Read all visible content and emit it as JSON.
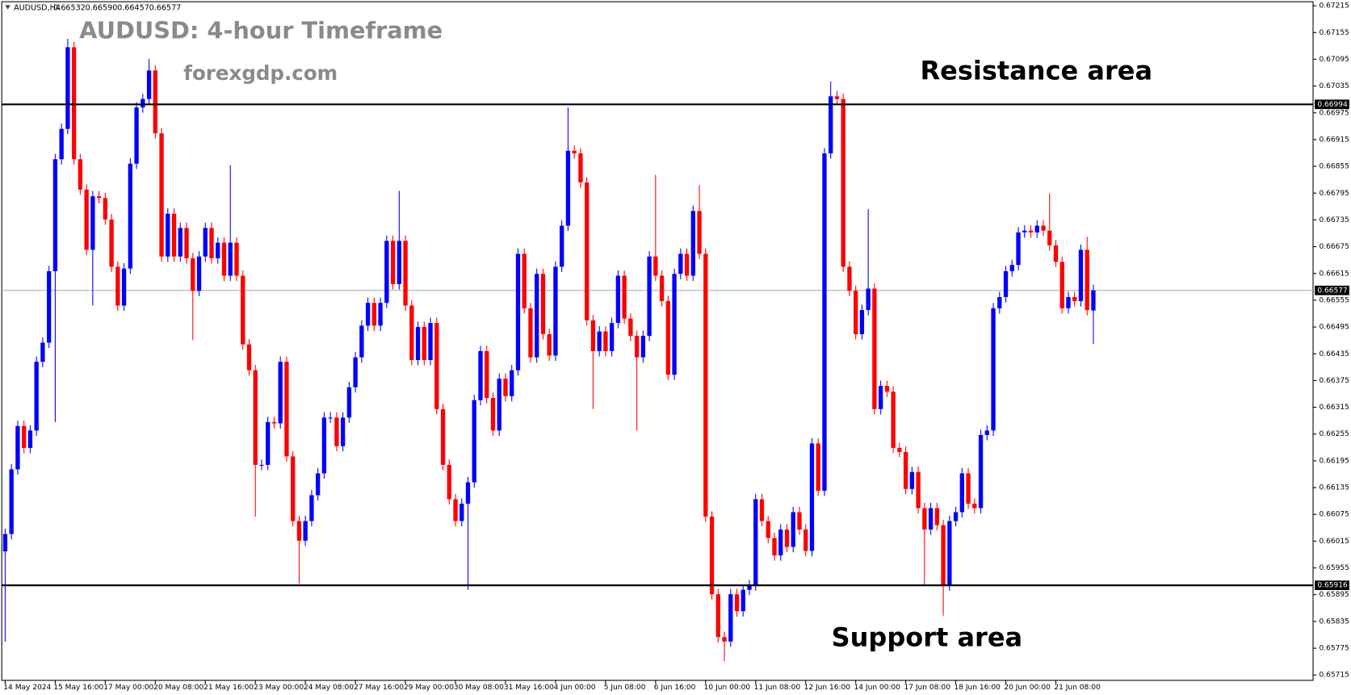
{
  "chart_data": {
    "type": "candlestick",
    "symbol": "AUDUSD,H4",
    "header_labels": [
      "0.66532",
      "0.66590",
      "0.66457",
      "0.66577"
    ],
    "title": "AUDUSD: 4-hour Timeframe",
    "subtitle": "forexgdp.com",
    "annotations": [
      "Resistance area",
      "Support area"
    ],
    "up_color": "#0000ff",
    "down_color": "#ff0000",
    "levels": [
      0.66994,
      0.65916
    ],
    "last_price": 0.66577,
    "ylim": [
      0.65703,
      0.67224
    ],
    "yticks": [
      0.67215,
      0.67155,
      0.67095,
      0.67035,
      0.66975,
      0.66915,
      0.66855,
      0.66795,
      0.66735,
      0.66675,
      0.66615,
      0.66555,
      0.66495,
      0.66435,
      0.66375,
      0.66315,
      0.66255,
      0.66195,
      0.66135,
      0.66075,
      0.66015,
      0.65955,
      0.65895,
      0.65835,
      0.65775,
      0.65715
    ],
    "categories": [
      "14 May 2024",
      null,
      null,
      null,
      null,
      null,
      null,
      null,
      "15 May 16:00",
      null,
      null,
      null,
      null,
      null,
      null,
      null,
      "17 May 00:00",
      null,
      null,
      null,
      null,
      null,
      null,
      null,
      "20 May 08:00",
      null,
      null,
      null,
      null,
      null,
      null,
      null,
      "21 May 16:00",
      null,
      null,
      null,
      null,
      null,
      null,
      null,
      "23 May 00:00",
      null,
      null,
      null,
      null,
      null,
      null,
      null,
      "24 May 08:00",
      null,
      null,
      null,
      null,
      null,
      null,
      null,
      "27 May 16:00",
      null,
      null,
      null,
      null,
      null,
      null,
      null,
      "29 May 00:00",
      null,
      null,
      null,
      null,
      null,
      null,
      null,
      "30 May 08:00",
      null,
      null,
      null,
      null,
      null,
      null,
      null,
      "31 May 16:00",
      null,
      null,
      null,
      null,
      null,
      null,
      null,
      "4 Jun 00:00",
      null,
      null,
      null,
      null,
      null,
      null,
      null,
      "5 Jun 08:00",
      null,
      null,
      null,
      null,
      null,
      null,
      null,
      "6 Jun 16:00",
      null,
      null,
      null,
      null,
      null,
      null,
      null,
      "10 Jun 00:00",
      null,
      null,
      null,
      null,
      null,
      null,
      null,
      "11 Jun 08:00",
      null,
      null,
      null,
      null,
      null,
      null,
      null,
      "12 Jun 16:00",
      null,
      null,
      null,
      null,
      null,
      null,
      null,
      "14 Jun 00:00",
      null,
      null,
      null,
      null,
      null,
      null,
      null,
      "17 Jun 08:00",
      null,
      null,
      null,
      null,
      null,
      null,
      null,
      "18 Jun 16:00",
      null,
      null,
      null,
      null,
      null,
      null,
      null,
      "20 Jun 00:00",
      null,
      null,
      null,
      null,
      null,
      null,
      null,
      "21 Jun 08:00",
      null,
      null,
      null,
      null,
      null,
      null
    ],
    "open": [
      0.65992,
      0.66031,
      0.66176,
      0.66273,
      0.66224,
      0.66263,
      0.66417,
      0.6646,
      0.6662,
      0.66871,
      0.66939,
      0.67122,
      0.66871,
      0.66803,
      0.66668,
      0.66788,
      0.66784,
      0.66736,
      0.6663,
      0.66543,
      0.66626,
      0.66861,
      0.66987,
      0.67006,
      0.6707,
      0.66929,
      0.66653,
      0.66749,
      0.66653,
      0.66717,
      0.66649,
      0.66576,
      0.66653,
      0.66717,
      0.66649,
      0.66684,
      0.6661,
      0.66684,
      0.6661,
      0.66456,
      0.66398,
      0.66186,
      0.66186,
      0.66282,
      0.66279,
      0.66417,
      0.66205,
      0.6606,
      0.66016,
      0.6606,
      0.66118,
      0.66167,
      0.66292,
      0.66292,
      0.66228,
      0.66292,
      0.6636,
      0.66427,
      0.66498,
      0.66549,
      0.66498,
      0.66549,
      0.66688,
      0.66591,
      0.66688,
      0.66543,
      0.66421,
      0.66495,
      0.66421,
      0.66504,
      0.66311,
      0.66186,
      0.66109,
      0.6606,
      0.66099,
      0.66147,
      0.66331,
      0.66441,
      0.66336,
      0.66263,
      0.66379,
      0.6634,
      0.66398,
      0.66659,
      0.66537,
      0.66427,
      0.66614,
      0.66479,
      0.66431,
      0.6663,
      0.66722,
      0.6689,
      0.66884,
      0.66819,
      0.6651,
      0.66441,
      0.66485,
      0.66441,
      0.66504,
      0.6661,
      0.66514,
      0.66475,
      0.66427,
      0.66475,
      0.66653,
      0.6661,
      0.66553,
      0.66388,
      0.66614,
      0.66659,
      0.6661,
      0.66755,
      0.66659,
      0.6607,
      0.65896,
      0.658,
      0.6579,
      0.65896,
      0.65858,
      0.65906,
      0.65916,
      0.66109,
      0.6606,
      0.66022,
      0.65983,
      0.66041,
      0.66002,
      0.6608,
      0.66041,
      0.65993,
      0.66234,
      0.66128,
      0.66884,
      0.67012,
      0.67006,
      0.6663,
      0.66576,
      0.66479,
      0.66533,
      0.66581,
      0.66311,
      0.66363,
      0.6635,
      0.66224,
      0.66215,
      0.66132,
      0.6617,
      0.66089,
      0.66041,
      0.66089,
      0.66051,
      0.65916,
      0.6606,
      0.6608,
      0.66167,
      0.66099,
      0.66089,
      0.66253,
      0.66263,
      0.66537,
      0.66562,
      0.6662,
      0.66634,
      0.66707,
      0.66711,
      0.66707,
      0.66722,
      0.66711,
      0.66678,
      0.66641,
      0.66537,
      0.66562,
      0.66553,
      0.66668,
      0.66532
    ],
    "high": [
      0.66043,
      0.66188,
      0.66285,
      0.66285,
      0.66275,
      0.66429,
      0.66472,
      0.66632,
      0.66883,
      0.66951,
      0.67141,
      0.67134,
      0.66883,
      0.66815,
      0.668,
      0.668,
      0.66796,
      0.66748,
      0.66642,
      0.66638,
      0.66873,
      0.66999,
      0.67018,
      0.67096,
      0.67082,
      0.66941,
      0.66761,
      0.66761,
      0.66729,
      0.66729,
      0.66661,
      0.66665,
      0.66729,
      0.66729,
      0.66696,
      0.66696,
      0.66858,
      0.66696,
      0.66622,
      0.66468,
      0.6641,
      0.66198,
      0.66294,
      0.66294,
      0.66429,
      0.66429,
      0.66217,
      0.66072,
      0.66072,
      0.6613,
      0.66179,
      0.66304,
      0.66304,
      0.66304,
      0.66304,
      0.66372,
      0.66439,
      0.6651,
      0.66561,
      0.66561,
      0.66561,
      0.667,
      0.667,
      0.668,
      0.667,
      0.66555,
      0.66507,
      0.66507,
      0.66516,
      0.66516,
      0.66323,
      0.66198,
      0.66121,
      0.66111,
      0.66159,
      0.66343,
      0.66453,
      0.66453,
      0.66348,
      0.66391,
      0.66391,
      0.6641,
      0.66671,
      0.66671,
      0.66549,
      0.66626,
      0.66626,
      0.66491,
      0.66642,
      0.66734,
      0.66987,
      0.66902,
      0.66896,
      0.66831,
      0.66522,
      0.66497,
      0.66497,
      0.66516,
      0.66622,
      0.66622,
      0.66526,
      0.66487,
      0.66487,
      0.66665,
      0.66836,
      0.66622,
      0.66565,
      0.66626,
      0.66671,
      0.66671,
      0.66767,
      0.66813,
      0.66671,
      0.66082,
      0.65908,
      0.65812,
      0.65908,
      0.65908,
      0.65918,
      0.65928,
      0.66121,
      0.66121,
      0.66072,
      0.66034,
      0.66053,
      0.66053,
      0.66092,
      0.66092,
      0.66053,
      0.66246,
      0.66246,
      0.66896,
      0.67045,
      0.67024,
      0.67018,
      0.66642,
      0.66588,
      0.66545,
      0.66759,
      0.66593,
      0.66375,
      0.66375,
      0.66362,
      0.66236,
      0.66227,
      0.66182,
      0.66182,
      0.66101,
      0.66101,
      0.66101,
      0.66063,
      0.66072,
      0.66092,
      0.66179,
      0.66179,
      0.66111,
      0.66265,
      0.66275,
      0.66549,
      0.66574,
      0.66632,
      0.66646,
      0.66719,
      0.66723,
      0.66723,
      0.66734,
      0.66734,
      0.66794,
      0.6669,
      0.66653,
      0.66574,
      0.66574,
      0.6668,
      0.66697,
      0.6659
    ],
    "low": [
      0.6579,
      0.66019,
      0.66164,
      0.66212,
      0.66212,
      0.66251,
      0.66405,
      0.66448,
      0.66282,
      0.66859,
      0.66927,
      0.66859,
      0.66791,
      0.66656,
      0.66543,
      0.66772,
      0.66724,
      0.66618,
      0.66531,
      0.66531,
      0.66614,
      0.66849,
      0.66975,
      0.66994,
      0.66917,
      0.66641,
      0.66641,
      0.66641,
      0.66641,
      0.66637,
      0.66466,
      0.66564,
      0.66641,
      0.66637,
      0.66637,
      0.66598,
      0.66598,
      0.66598,
      0.66444,
      0.66386,
      0.6607,
      0.66174,
      0.66174,
      0.66267,
      0.66267,
      0.66193,
      0.66048,
      0.6592,
      0.66004,
      0.66048,
      0.66106,
      0.66155,
      0.6628,
      0.66216,
      0.66216,
      0.6628,
      0.66348,
      0.66415,
      0.66486,
      0.66486,
      0.66486,
      0.66537,
      0.66579,
      0.66579,
      0.66531,
      0.66409,
      0.66409,
      0.66409,
      0.66409,
      0.66299,
      0.66174,
      0.66097,
      0.66048,
      0.66048,
      0.65906,
      0.66135,
      0.66319,
      0.66324,
      0.66251,
      0.66251,
      0.66328,
      0.66328,
      0.66386,
      0.66525,
      0.66415,
      0.66415,
      0.66467,
      0.66419,
      0.66419,
      0.66618,
      0.6671,
      0.66872,
      0.66807,
      0.66498,
      0.66311,
      0.66429,
      0.66429,
      0.66429,
      0.66492,
      0.66502,
      0.66463,
      0.66263,
      0.66415,
      0.66463,
      0.66598,
      0.66541,
      0.66376,
      0.66376,
      0.66602,
      0.66598,
      0.66598,
      0.66647,
      0.66058,
      0.65884,
      0.65788,
      0.65746,
      0.65778,
      0.65846,
      0.65846,
      0.65894,
      0.65904,
      0.66048,
      0.6601,
      0.65971,
      0.65971,
      0.6599,
      0.6599,
      0.66029,
      0.65981,
      0.65981,
      0.66116,
      0.66116,
      0.66872,
      0.66994,
      0.66618,
      0.66564,
      0.66467,
      0.66467,
      0.66521,
      0.66299,
      0.66299,
      0.66338,
      0.66212,
      0.66203,
      0.6612,
      0.6612,
      0.66077,
      0.65916,
      0.66029,
      0.66039,
      0.65848,
      0.65904,
      0.66048,
      0.66068,
      0.66087,
      0.66077,
      0.66077,
      0.66241,
      0.66251,
      0.66525,
      0.6655,
      0.66608,
      0.66622,
      0.66695,
      0.66695,
      0.66695,
      0.66699,
      0.66666,
      0.66629,
      0.66525,
      0.66525,
      0.66541,
      0.66541,
      0.66521,
      0.66457
    ],
    "close": [
      0.66031,
      0.66176,
      0.66273,
      0.66224,
      0.66263,
      0.66417,
      0.6646,
      0.6662,
      0.66871,
      0.66939,
      0.67122,
      0.66871,
      0.66803,
      0.66668,
      0.66788,
      0.66784,
      0.66736,
      0.6663,
      0.66543,
      0.66626,
      0.66861,
      0.66987,
      0.67006,
      0.6707,
      0.66929,
      0.66653,
      0.66749,
      0.66653,
      0.66717,
      0.66649,
      0.66576,
      0.66653,
      0.66717,
      0.66649,
      0.66684,
      0.6661,
      0.66684,
      0.6661,
      0.66456,
      0.66398,
      0.66186,
      0.66186,
      0.66282,
      0.66279,
      0.66417,
      0.66205,
      0.6606,
      0.66016,
      0.6606,
      0.66118,
      0.66167,
      0.66292,
      0.66292,
      0.66228,
      0.66292,
      0.6636,
      0.66427,
      0.66498,
      0.66549,
      0.66498,
      0.66549,
      0.66688,
      0.66591,
      0.66688,
      0.66543,
      0.66421,
      0.66495,
      0.66421,
      0.66504,
      0.66311,
      0.66186,
      0.66109,
      0.6606,
      0.66099,
      0.66147,
      0.66331,
      0.66441,
      0.66336,
      0.66263,
      0.66379,
      0.6634,
      0.66398,
      0.66659,
      0.66537,
      0.66427,
      0.66614,
      0.66479,
      0.66431,
      0.6663,
      0.66722,
      0.6689,
      0.66884,
      0.66819,
      0.6651,
      0.66441,
      0.66485,
      0.66441,
      0.66504,
      0.6661,
      0.66514,
      0.66475,
      0.66427,
      0.66475,
      0.66653,
      0.6661,
      0.66553,
      0.66388,
      0.66614,
      0.66659,
      0.6661,
      0.66755,
      0.66659,
      0.6607,
      0.65896,
      0.658,
      0.6579,
      0.65896,
      0.65858,
      0.65906,
      0.65916,
      0.66109,
      0.6606,
      0.66022,
      0.65983,
      0.66041,
      0.66002,
      0.6608,
      0.66041,
      0.65993,
      0.66234,
      0.66128,
      0.66884,
      0.67012,
      0.67006,
      0.6663,
      0.66576,
      0.66479,
      0.66533,
      0.66581,
      0.66311,
      0.66363,
      0.6635,
      0.66224,
      0.66215,
      0.66132,
      0.6617,
      0.66089,
      0.66041,
      0.66089,
      0.66051,
      0.65916,
      0.6606,
      0.6608,
      0.66167,
      0.66099,
      0.66089,
      0.66253,
      0.66263,
      0.66537,
      0.66562,
      0.6662,
      0.66634,
      0.66707,
      0.66711,
      0.66707,
      0.66722,
      0.66711,
      0.66678,
      0.66641,
      0.66537,
      0.66562,
      0.66553,
      0.66668,
      0.66533,
      0.66577
    ]
  }
}
